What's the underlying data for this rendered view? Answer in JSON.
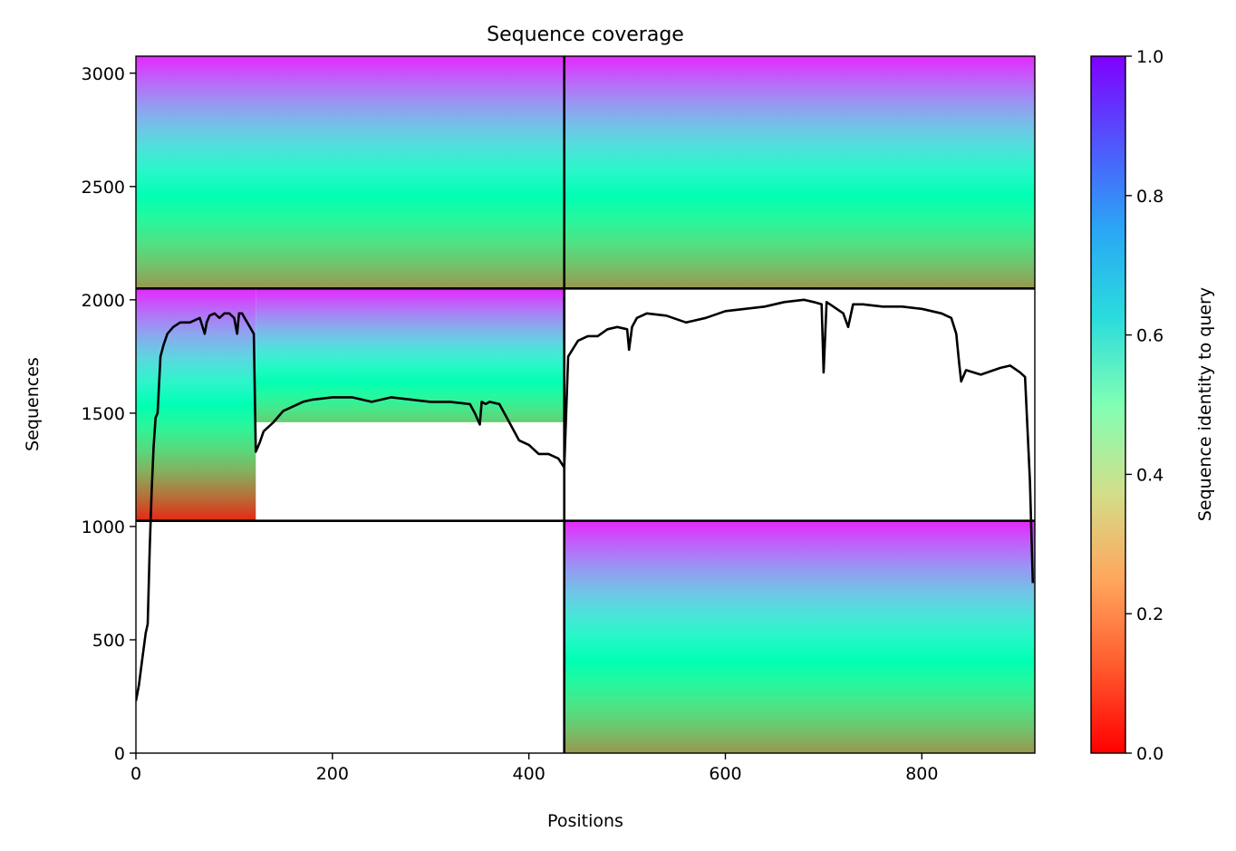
{
  "chart_data": {
    "type": "heatmap",
    "title": "Sequence coverage",
    "xlabel": "Positions",
    "ylabel": "Sequences",
    "xlim": [
      0,
      915
    ],
    "ylim": [
      0,
      3075
    ],
    "x_ticks": [
      "0",
      "200",
      "400",
      "600",
      "800"
    ],
    "y_ticks": [
      "0",
      "500",
      "1000",
      "1500",
      "2000",
      "2500",
      "3000"
    ],
    "colorbar": {
      "label": "Sequence identity to query",
      "colormap": "rainbow",
      "range": [
        0,
        1
      ],
      "ticks": [
        "0.0",
        "0.2",
        "0.4",
        "0.6",
        "0.8",
        "1.0"
      ]
    },
    "block_boundaries": {
      "x": [
        436
      ],
      "y": [
        1025,
        2050
      ]
    },
    "blocks": [
      {
        "x_range": [
          0,
          436
        ],
        "y_range": [
          2050,
          3075
        ],
        "identity_top": 0.95,
        "identity_bottom": 0.2
      },
      {
        "x_range": [
          436,
          915
        ],
        "y_range": [
          2050,
          3075
        ],
        "identity_top": 0.95,
        "identity_bottom": 0.2
      },
      {
        "x_range": [
          0,
          122
        ],
        "y_range": [
          1025,
          2050
        ],
        "identity_top": 0.95,
        "identity_bottom": 0.05
      },
      {
        "x_range": [
          122,
          436
        ],
        "y_range": [
          1460,
          2050
        ],
        "identity_top": 0.95,
        "identity_bottom": 0.3
      },
      {
        "x_range": [
          436,
          915
        ],
        "y_range": [
          0,
          1025
        ],
        "identity_top": 0.95,
        "identity_bottom": 0.2
      }
    ],
    "coverage_line": {
      "x": [
        0,
        3,
        6,
        10,
        12,
        14,
        16,
        18,
        20,
        22,
        25,
        28,
        32,
        38,
        45,
        55,
        65,
        70,
        72,
        75,
        80,
        85,
        90,
        95,
        100,
        103,
        105,
        108,
        112,
        116,
        120,
        122,
        126,
        130,
        140,
        150,
        160,
        170,
        180,
        200,
        220,
        240,
        250,
        260,
        280,
        300,
        320,
        340,
        345,
        350,
        352,
        356,
        360,
        370,
        380,
        390,
        400,
        410,
        420,
        430,
        436,
        440,
        450,
        460,
        470,
        480,
        490,
        500,
        502,
        505,
        510,
        520,
        540,
        560,
        580,
        600,
        620,
        640,
        660,
        680,
        690,
        698,
        700,
        703,
        710,
        720,
        725,
        730,
        740,
        760,
        780,
        800,
        820,
        830,
        835,
        838,
        840,
        845,
        860,
        880,
        890,
        900,
        905,
        910,
        913
      ],
      "y": [
        230,
        300,
        400,
        530,
        570,
        900,
        1150,
        1350,
        1480,
        1500,
        1750,
        1800,
        1850,
        1880,
        1900,
        1900,
        1920,
        1850,
        1900,
        1930,
        1940,
        1920,
        1940,
        1940,
        1920,
        1850,
        1940,
        1940,
        1910,
        1880,
        1850,
        1330,
        1370,
        1420,
        1460,
        1510,
        1530,
        1550,
        1560,
        1570,
        1570,
        1550,
        1560,
        1570,
        1560,
        1550,
        1550,
        1540,
        1500,
        1450,
        1550,
        1540,
        1550,
        1540,
        1460,
        1380,
        1360,
        1320,
        1320,
        1300,
        1260,
        1750,
        1820,
        1840,
        1840,
        1870,
        1880,
        1870,
        1780,
        1880,
        1920,
        1940,
        1930,
        1900,
        1920,
        1950,
        1960,
        1970,
        1990,
        2000,
        1990,
        1980,
        1680,
        1990,
        1970,
        1940,
        1880,
        1980,
        1980,
        1970,
        1970,
        1960,
        1940,
        1920,
        1850,
        1720,
        1640,
        1690,
        1670,
        1700,
        1710,
        1680,
        1660,
        1200,
        750
      ]
    }
  }
}
